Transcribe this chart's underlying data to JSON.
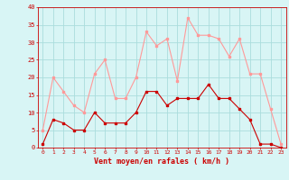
{
  "hours": [
    0,
    1,
    2,
    3,
    4,
    5,
    6,
    7,
    8,
    9,
    10,
    11,
    12,
    13,
    14,
    15,
    16,
    17,
    18,
    19,
    20,
    21,
    22,
    23
  ],
  "wind_avg": [
    1,
    8,
    7,
    5,
    5,
    10,
    7,
    7,
    7,
    10,
    16,
    16,
    12,
    14,
    14,
    14,
    18,
    14,
    14,
    11,
    8,
    1,
    1,
    0
  ],
  "wind_gust": [
    5,
    20,
    16,
    12,
    10,
    21,
    25,
    14,
    14,
    20,
    33,
    29,
    31,
    19,
    37,
    32,
    32,
    31,
    26,
    31,
    21,
    21,
    11,
    1
  ],
  "bg_color": "#d8f5f5",
  "grid_color": "#aadddd",
  "line_avg_color": "#cc0000",
  "line_gust_color": "#ff9999",
  "xlabel": "Vent moyen/en rafales ( km/h )",
  "ylim": [
    0,
    40
  ],
  "yticks": [
    0,
    5,
    10,
    15,
    20,
    25,
    30,
    35,
    40
  ],
  "xticks": [
    0,
    1,
    2,
    3,
    4,
    5,
    6,
    7,
    8,
    9,
    10,
    11,
    12,
    13,
    14,
    15,
    16,
    17,
    18,
    19,
    20,
    21,
    22,
    23
  ],
  "tick_color": "#cc0000",
  "label_color": "#cc0000",
  "axis_color": "#cc0000"
}
